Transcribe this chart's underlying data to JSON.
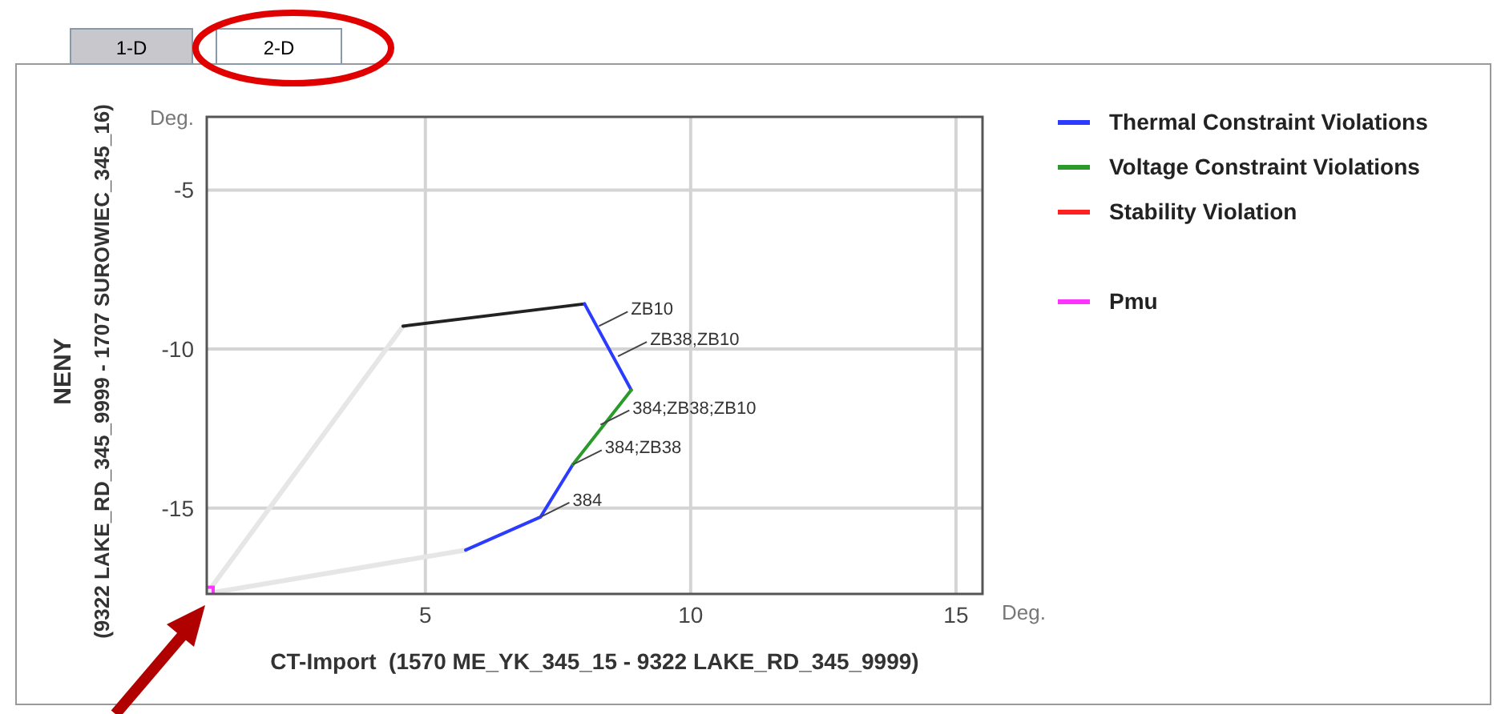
{
  "chart_data": {
    "type": "line",
    "xlabel": "CT-Import  (1570 ME_YK_345_15 - 9322 LAKE_RD_345_9999)",
    "ylabel": "NENY\n(9322 LAKE_RD_345_9999 - 1707 SUROWIEC_345_16)",
    "xlim": [
      0.88,
      15.5
    ],
    "ylim": [
      -17.7,
      -2.7
    ],
    "xticks": [
      5,
      10,
      15
    ],
    "yticks": [
      -15,
      -10,
      -5
    ],
    "grid": true,
    "legend": "right",
    "marker": "none",
    "line_style": "solid",
    "series": [
      {
        "color": "#e6e6e6",
        "x": [
          4.58,
          0.88,
          5.76
        ],
        "values": [
          -9.28,
          -17.69,
          -16.32
        ]
      },
      {
        "color": "#222222",
        "x": [
          4.58,
          8.0
        ],
        "values": [
          -9.28,
          -8.58
        ]
      },
      {
        "name": "Thermal Constraint Violations",
        "color": "#2b3bff",
        "x": [
          8.0,
          8.88,
          8.3,
          7.78,
          7.17,
          5.76
        ],
        "values": [
          -8.58,
          -11.29,
          null,
          -13.63,
          -15.28,
          -16.32
        ]
      },
      {
        "name": "Voltage Constraint Violations",
        "color": "#2a9a2a",
        "x": [
          8.88,
          7.78
        ],
        "values": [
          -11.29,
          -13.63
        ]
      },
      {
        "name": "Stability Violation",
        "color": "#ff2020"
      },
      {
        "name": "Pmu",
        "color": "#ff33ff",
        "x": [
          0.88
        ],
        "values": [
          -17.69
        ],
        "marker": "square"
      }
    ],
    "annotations": [
      "1-D",
      "2-D",
      "Deg.",
      "Deg.",
      {
        "text": "ZB10",
        "x": 8.27,
        "y": -9.28
      },
      {
        "text": "ZB38,ZB10",
        "x": 8.63,
        "y": -10.23
      },
      {
        "text": "384;ZB38;ZB10",
        "x": 8.3,
        "y": -12.38
      },
      {
        "text": "384;ZB38",
        "x": 7.78,
        "y": -13.63
      },
      {
        "text": "384",
        "x": 7.17,
        "y": -15.28
      }
    ]
  }
}
